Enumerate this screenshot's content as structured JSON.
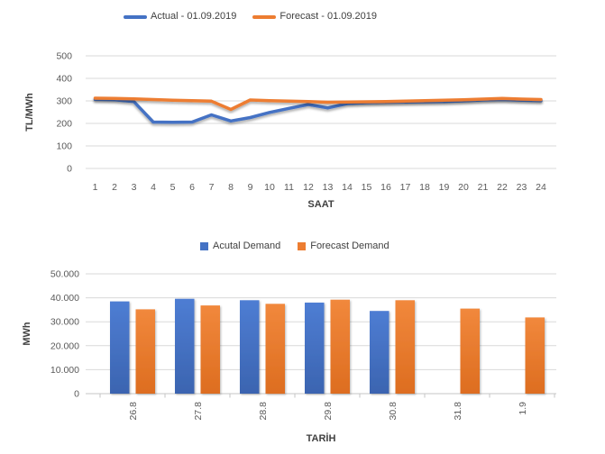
{
  "colors": {
    "actual": "#4472C4",
    "forecast": "#ED7D31",
    "actual_top": "#4E7DD3",
    "actual_bottom": "#3B64B0",
    "forecast_top": "#F1883C",
    "forecast_bottom": "#DD6D20",
    "gridline": "#D9D9D9",
    "axis_line": "#C6C6C6",
    "tick_text": "#595959",
    "title_text": "#404040"
  },
  "chart_data": [
    {
      "type": "line",
      "title": "",
      "legend": [
        "Actual - 01.09.2019",
        "Forecast - 01.09.2019"
      ],
      "legend_position": "top",
      "x": [
        1,
        2,
        3,
        4,
        5,
        6,
        7,
        8,
        9,
        10,
        11,
        12,
        13,
        14,
        15,
        16,
        17,
        18,
        19,
        20,
        21,
        22,
        23,
        24
      ],
      "series": [
        {
          "name": "Actual - 01.09.2019",
          "color_key": "actual",
          "values": [
            307,
            305,
            297,
            206,
            205,
            206,
            238,
            211,
            226,
            249,
            267,
            284,
            269,
            288,
            292,
            294,
            295,
            296,
            297,
            300,
            304,
            306,
            303,
            301
          ]
        },
        {
          "name": "Forecast - 01.09.2019",
          "color_key": "forecast",
          "values": [
            312,
            311,
            309,
            306,
            303,
            301,
            299,
            262,
            304,
            301,
            299,
            297,
            294,
            295,
            296,
            297,
            299,
            301,
            303,
            305,
            308,
            311,
            308,
            306
          ]
        }
      ],
      "xlabel": "SAAT",
      "ylabel": "TL/MWh",
      "ylim": [
        0,
        500
      ],
      "ytick_labels": [
        "0",
        "100",
        "200",
        "300",
        "400",
        "500"
      ],
      "grid": true
    },
    {
      "type": "bar",
      "title": "",
      "legend": [
        "Acutal Demand",
        "Forecast Demand"
      ],
      "legend_position": "top",
      "categories": [
        "26.8",
        "27.8",
        "28.8",
        "29.8",
        "30.8",
        "31.8",
        "1.9"
      ],
      "series": [
        {
          "name": "Acutal Demand",
          "color_key": "actual",
          "values": [
            38500,
            39600,
            39000,
            38000,
            34500,
            null,
            null
          ]
        },
        {
          "name": "Forecast Demand",
          "color_key": "forecast",
          "values": [
            35200,
            36800,
            37500,
            39200,
            39000,
            35500,
            31800
          ]
        }
      ],
      "xlabel": "TARİH",
      "ylabel": "MWh",
      "ylim": [
        0,
        50000
      ],
      "ytick_labels": [
        "0",
        "10.000",
        "20.000",
        "30.000",
        "40.000",
        "50.000"
      ],
      "grid": true
    }
  ]
}
